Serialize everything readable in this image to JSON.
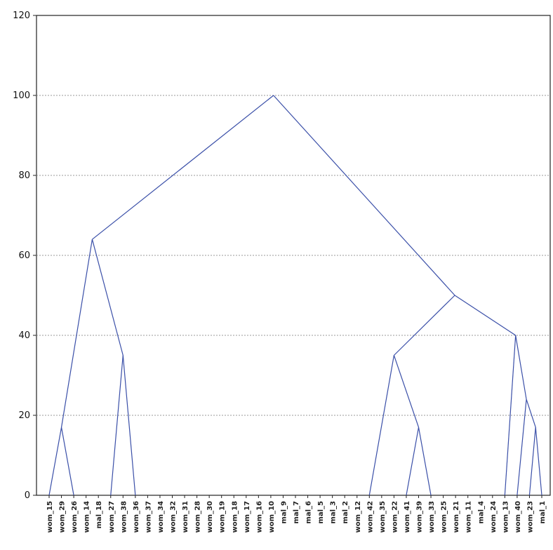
{
  "chart_data": {
    "type": "dendrogram",
    "title": "",
    "xlabel": "",
    "ylabel": "",
    "ylim": [
      0,
      120
    ],
    "yticks": [
      0,
      20,
      40,
      60,
      80,
      100,
      120
    ],
    "grid": true,
    "line_color": "#3a4fa8",
    "leaves": [
      "wom_15",
      "wom_29",
      "wom_26",
      "wom_14",
      "mal_18",
      "wom_27",
      "wom_38",
      "wom_36",
      "wom_37",
      "wom_34",
      "wom_32",
      "wom_31",
      "wom_28",
      "wom_30",
      "wom_19",
      "wom_18",
      "wom_17",
      "wom_16",
      "wom_10",
      "mal_9",
      "mal_7",
      "mal_6",
      "mal_5",
      "mal_3",
      "mal_2",
      "wom_12",
      "wom_42",
      "wom_35",
      "wom_22",
      "wom_41",
      "wom_39",
      "wom_33",
      "wom_25",
      "wom_21",
      "wom_11",
      "mal_4",
      "wom_24",
      "wom_13",
      "wom_40",
      "wom_23",
      "mal_1"
    ],
    "merges": [
      {
        "left": "L0",
        "right": "L2",
        "height": 17
      },
      {
        "left": "L5",
        "right": "L7",
        "height": 35
      },
      {
        "left": "M0",
        "right": "M1",
        "height": 64
      },
      {
        "left": "L29",
        "right": "L31",
        "height": 17
      },
      {
        "left": "L26",
        "right": "M3",
        "height": 35
      },
      {
        "left": "L39",
        "right": "L40",
        "height": 17
      },
      {
        "left": "L38",
        "right": "M5",
        "height": 24
      },
      {
        "left": "L37",
        "right": "M6",
        "height": 40
      },
      {
        "left": "M4",
        "right": "M7",
        "height": 50
      },
      {
        "left": "M2",
        "right": "M8",
        "height": 100
      }
    ]
  }
}
